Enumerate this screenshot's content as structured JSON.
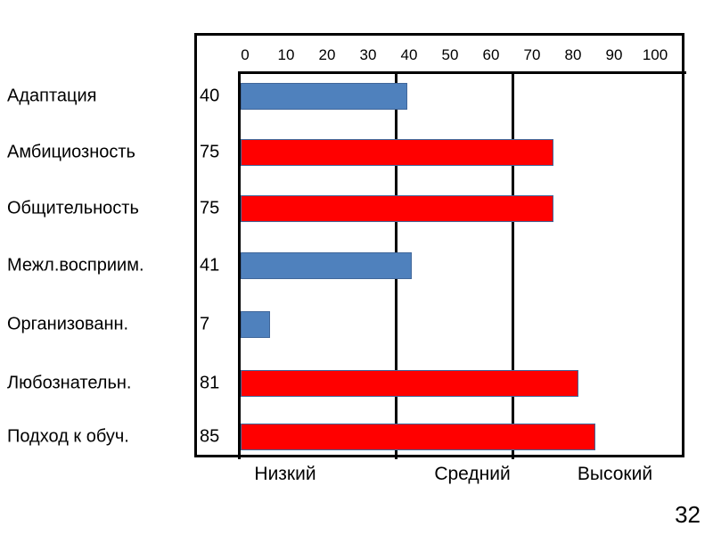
{
  "chart_data": {
    "type": "bar",
    "orientation": "horizontal",
    "categories": [
      "Адаптация",
      "Амбициозность",
      "Общительность",
      "Межл.восприим.",
      "Организованн.",
      "Любознательн.",
      "Подход к обуч."
    ],
    "values": [
      40,
      75,
      75,
      41,
      7,
      81,
      85
    ],
    "value_labels": [
      "40",
      "75",
      "75",
      "41",
      "7",
      "81",
      "85"
    ],
    "bar_colors": [
      "#4F81BD",
      "#FF0000",
      "#FF0000",
      "#4F81BD",
      "#4F81BD",
      "#FF0000",
      "#FF0000"
    ],
    "xlim": [
      0,
      100
    ],
    "x_ticks": [
      "0",
      "10",
      "20",
      "30",
      "40",
      "50",
      "60",
      "70",
      "80",
      "90",
      "100"
    ],
    "thresholds": [
      37,
      65
    ],
    "zones": [
      "Низкий",
      "Средний",
      "Высокий"
    ],
    "grid": false,
    "title": "",
    "xlabel": "",
    "ylabel": ""
  },
  "page_number": "32"
}
